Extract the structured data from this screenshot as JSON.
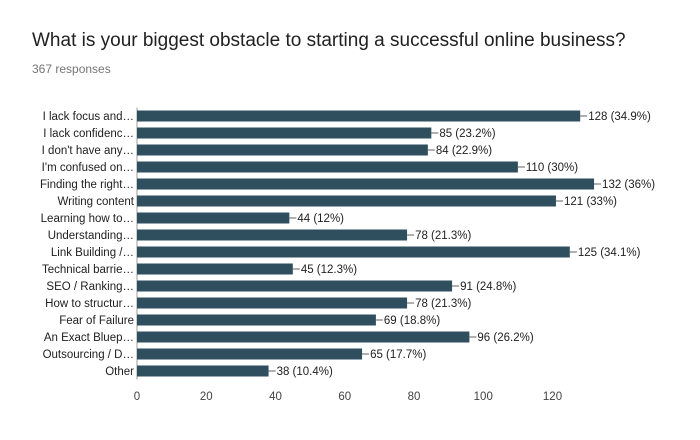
{
  "header": {
    "title": "What is your biggest obstacle to starting a successful online business?",
    "responses": "367 responses"
  },
  "chart_data": {
    "type": "bar",
    "orientation": "horizontal",
    "categories": [
      "I lack focus and…",
      "I lack confidenc…",
      "I don't have any…",
      "I'm confused on…",
      "Finding the right…",
      "Writing content",
      "Learning how to…",
      "Understanding…",
      "Link Building /…",
      "Technical barrie…",
      "SEO / Ranking…",
      "How to structur…",
      "Fear of Failure",
      "An Exact Bluep…",
      "Outsourcing / D…",
      "Other"
    ],
    "values": [
      128,
      85,
      84,
      110,
      132,
      121,
      44,
      78,
      125,
      45,
      91,
      78,
      69,
      96,
      65,
      38
    ],
    "data_labels": [
      "128 (34.9%)",
      "85 (23.2%)",
      "84 (22.9%)",
      "110 (30%)",
      "132 (36%)",
      "121 (33%)",
      "44 (12%)",
      "78 (21.3%)",
      "125 (34.1%)",
      "45 (12.3%)",
      "91 (24.8%)",
      "78 (21.3%)",
      "69 (18.8%)",
      "96 (26.2%)",
      "65 (17.7%)",
      "38 (10.4%)"
    ],
    "xticks": [
      0,
      20,
      40,
      60,
      80,
      100,
      120
    ],
    "xlim": [
      0,
      135
    ],
    "bar_color": "#2f4f5f",
    "grid": false,
    "legend": "none"
  }
}
